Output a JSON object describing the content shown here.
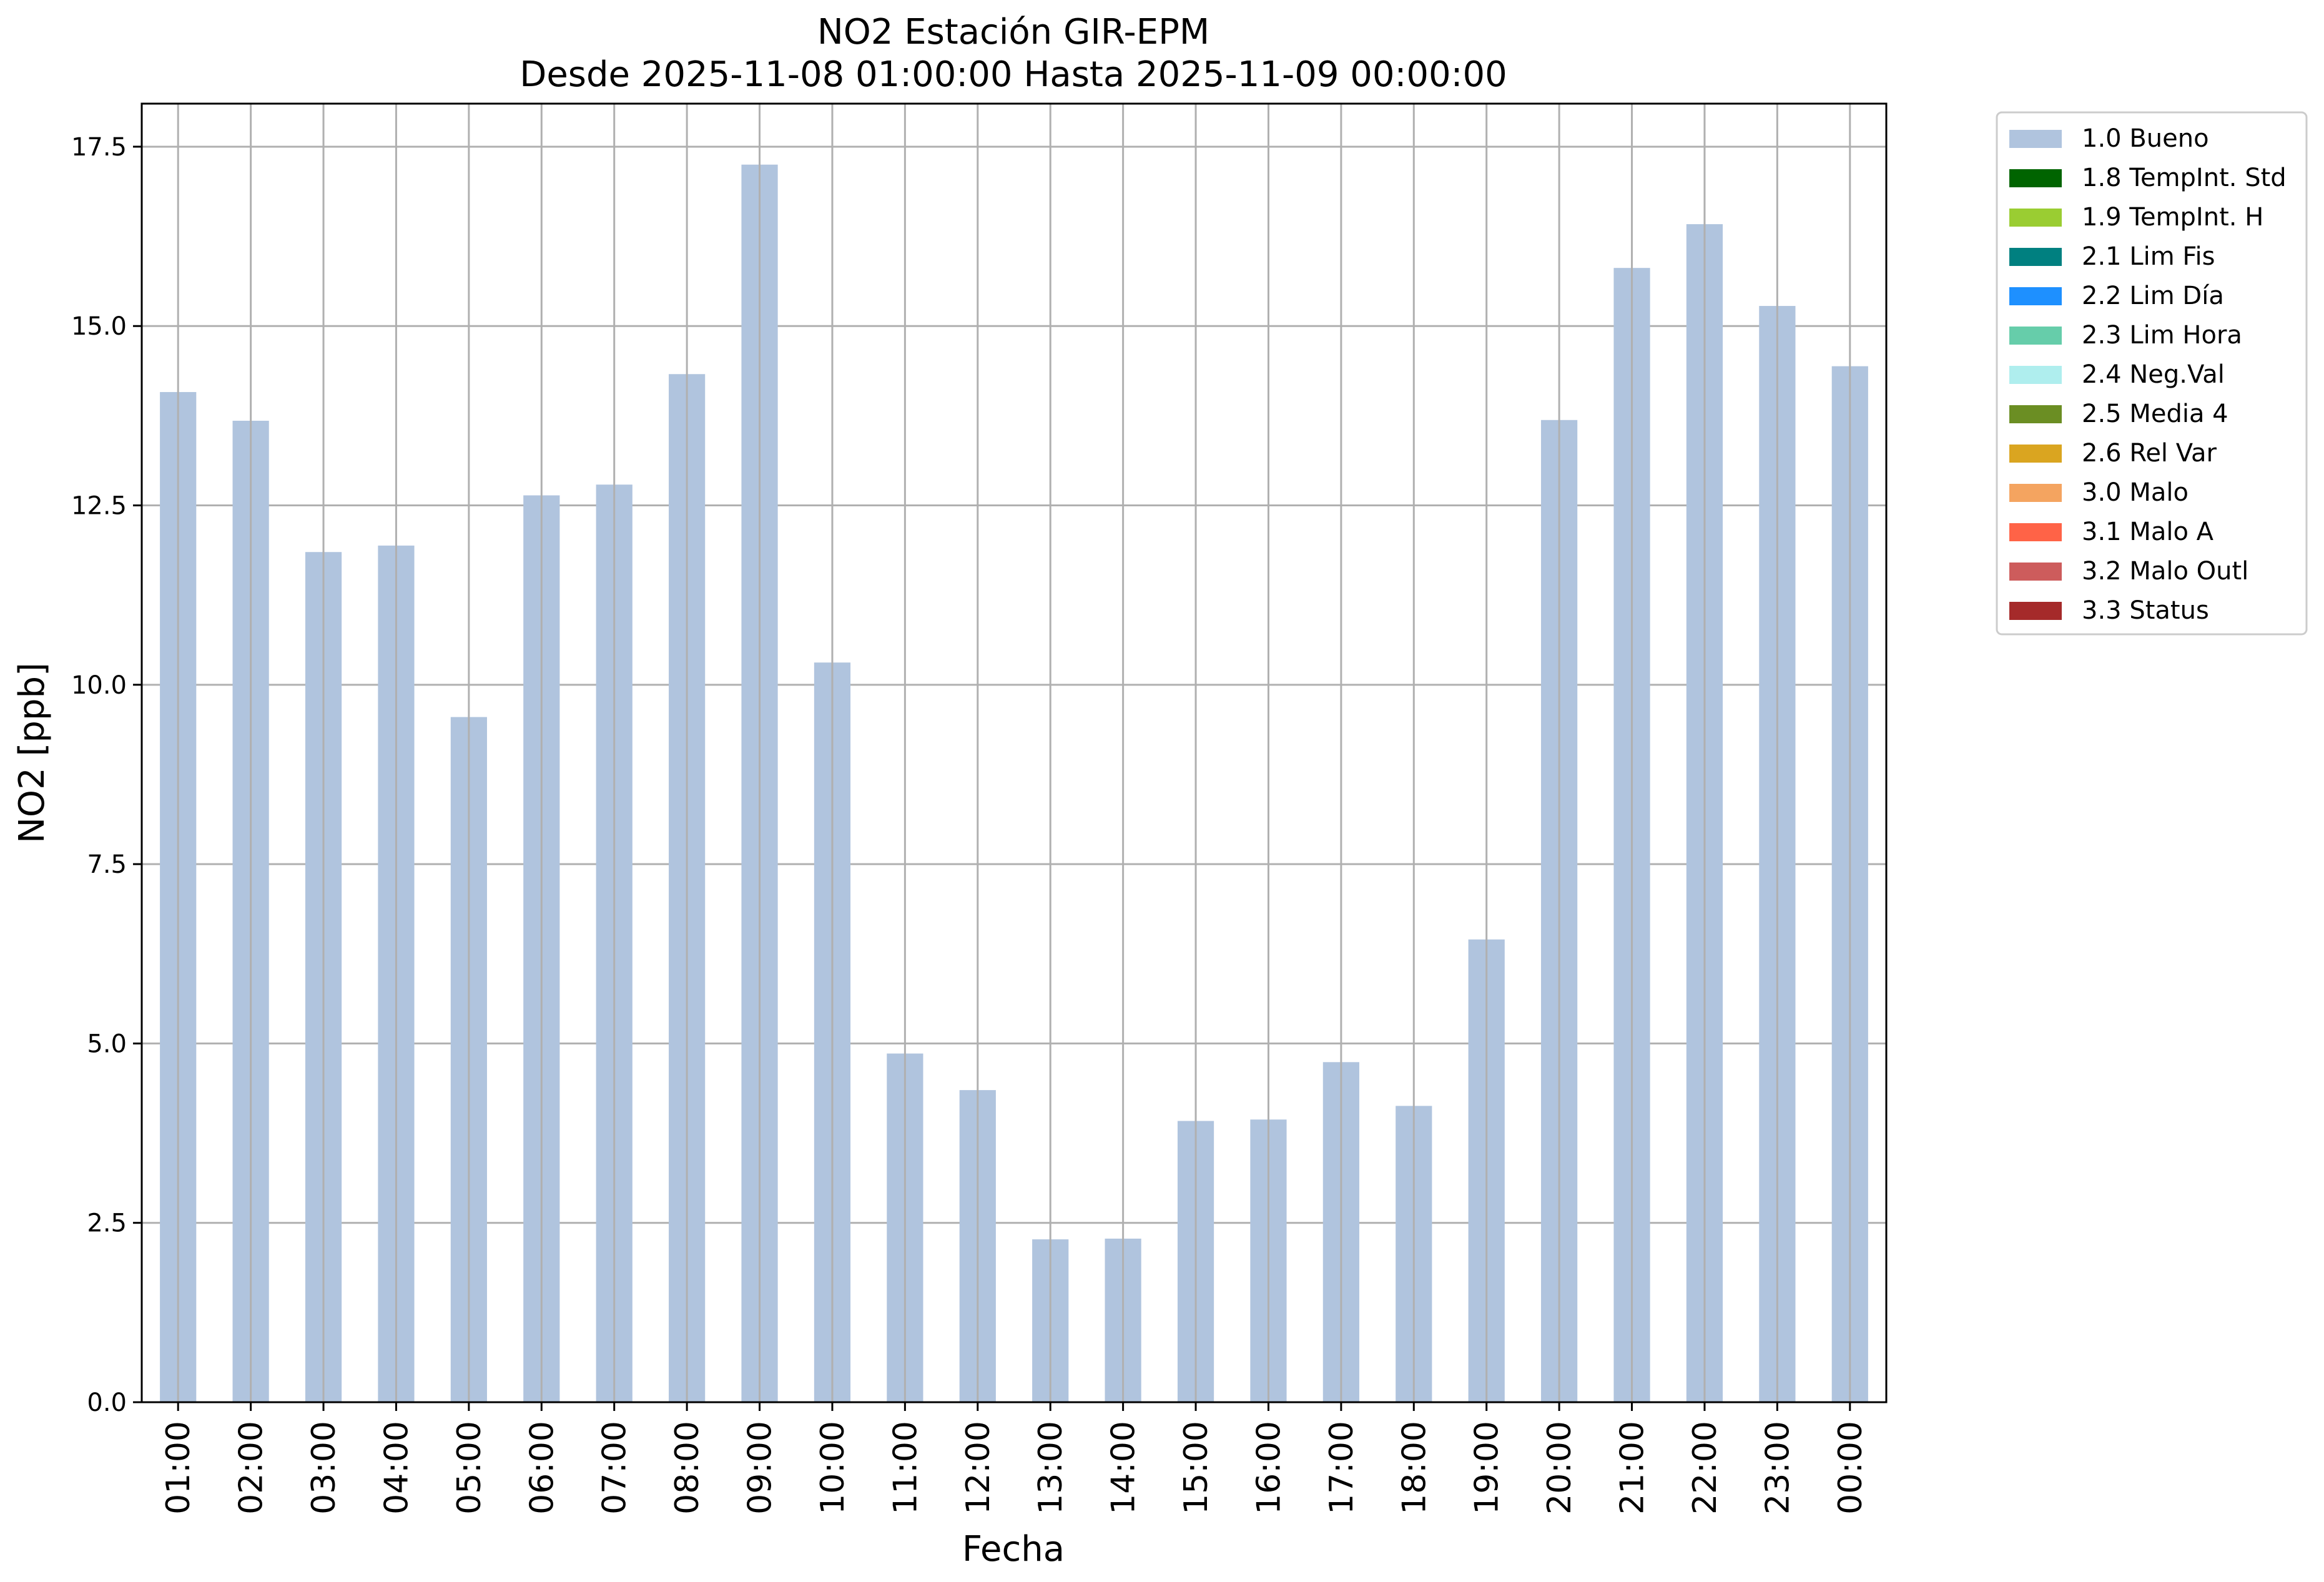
{
  "chart_data": {
    "type": "bar",
    "title": "NO2 Estación GIR-EPM",
    "subtitle": "Desde 2025-11-08 01:00:00 Hasta 2025-11-09 00:00:00",
    "xlabel": "Fecha",
    "ylabel": "NO2 [ppb]",
    "ylim": [
      0,
      18.1
    ],
    "yticks": [
      "0.0",
      "2.5",
      "5.0",
      "7.5",
      "10.0",
      "12.5",
      "15.0",
      "17.5"
    ],
    "grid": true,
    "legend_position": "outside-top-right",
    "categories": [
      "01:00",
      "02:00",
      "03:00",
      "04:00",
      "05:00",
      "06:00",
      "07:00",
      "08:00",
      "09:00",
      "10:00",
      "11:00",
      "12:00",
      "13:00",
      "14:00",
      "15:00",
      "16:00",
      "17:00",
      "18:00",
      "19:00",
      "20:00",
      "21:00",
      "22:00",
      "23:00",
      "00:00"
    ],
    "series": [
      {
        "name": "1.0 Bueno",
        "color": "#b0c4de",
        "values": [
          14.08,
          13.68,
          11.85,
          11.94,
          9.55,
          12.64,
          12.79,
          14.33,
          17.25,
          10.31,
          4.86,
          4.35,
          2.27,
          2.28,
          3.92,
          3.94,
          4.74,
          4.13,
          6.45,
          13.69,
          15.81,
          16.42,
          15.28,
          14.44
        ]
      }
    ],
    "legend": [
      {
        "label": "1.0 Bueno",
        "color": "#b0c4de"
      },
      {
        "label": "1.8 TempInt. Std",
        "color": "#006400"
      },
      {
        "label": "1.9 TempInt. H",
        "color": "#9acd32"
      },
      {
        "label": "2.1 Lim Fis",
        "color": "#008080"
      },
      {
        "label": "2.2 Lim Día",
        "color": "#1e90ff"
      },
      {
        "label": "2.3 Lim Hora",
        "color": "#66cdaa"
      },
      {
        "label": "2.4 Neg.Val",
        "color": "#afeeee"
      },
      {
        "label": "2.5 Media 4",
        "color": "#6b8e23"
      },
      {
        "label": "2.6 Rel Var",
        "color": "#daa520"
      },
      {
        "label": "3.0 Malo",
        "color": "#f4a460"
      },
      {
        "label": "3.1 Malo A",
        "color": "#ff6347"
      },
      {
        "label": "3.2 Malo Outl",
        "color": "#cd5c5c"
      },
      {
        "label": "3.3 Status",
        "color": "#a52a2a"
      }
    ]
  }
}
